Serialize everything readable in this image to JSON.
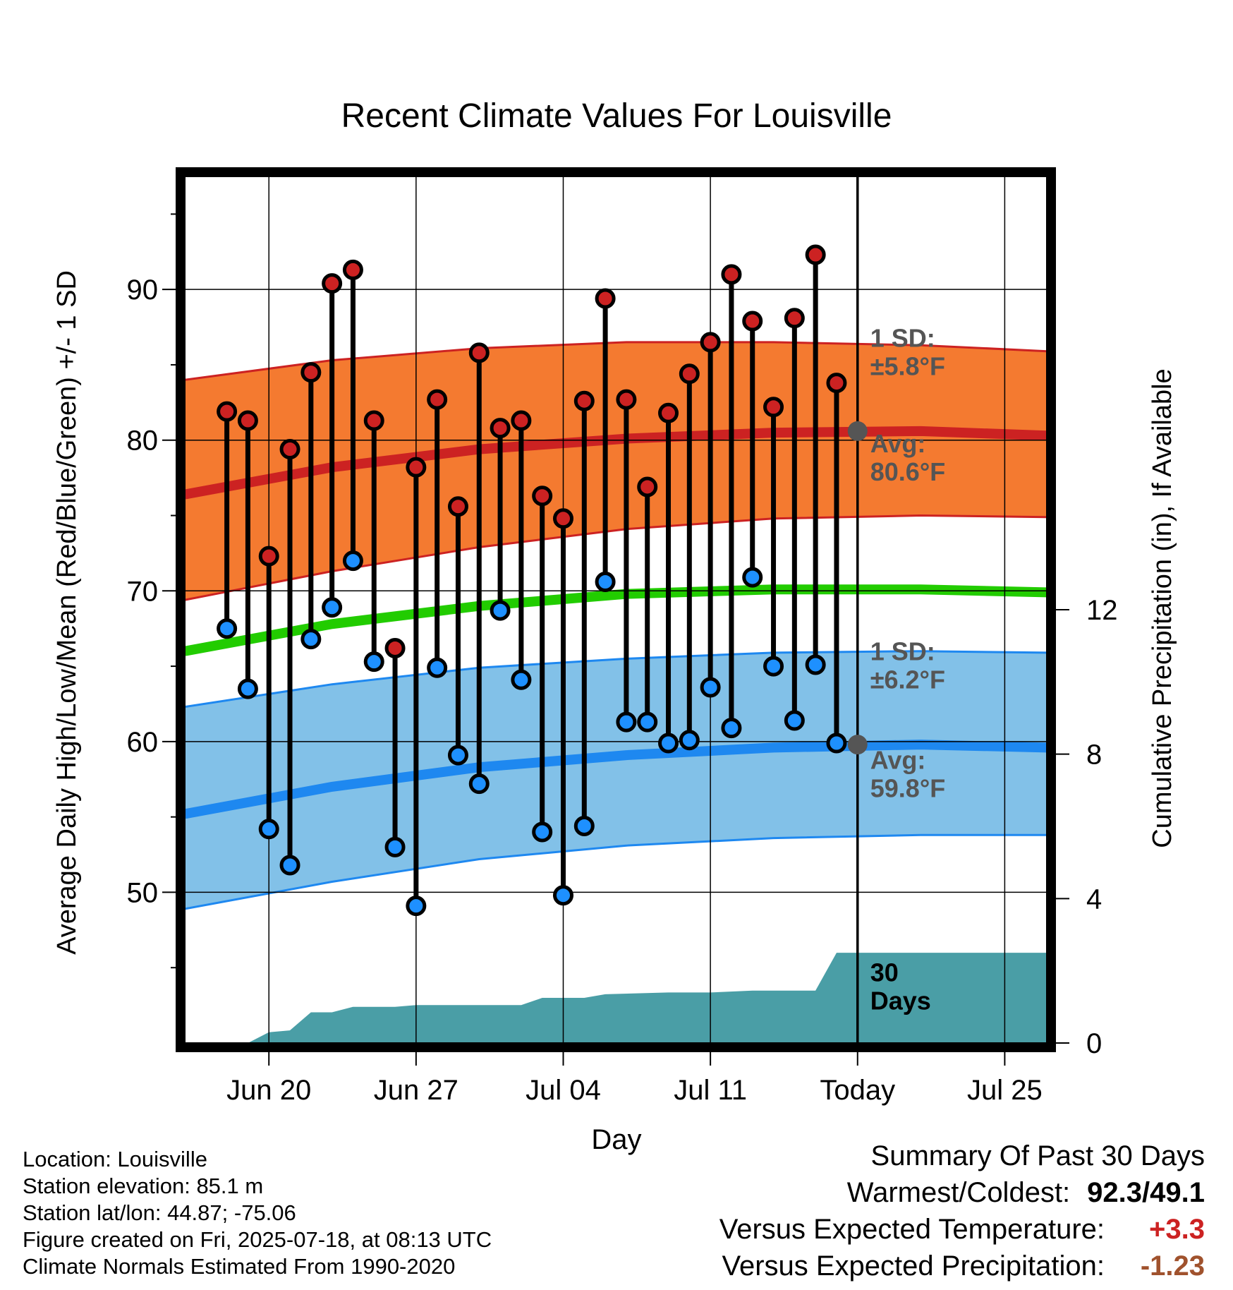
{
  "title": "Recent Climate Values For Louisville",
  "colors": {
    "high_band": "#f47a30",
    "high_edge": "#cc2222",
    "low_band": "#82c1e8",
    "low_edge": "#1e88f0",
    "mean_line": "#22cc00",
    "precip": "#4a9ea6",
    "high_dot": "#cc2222",
    "low_dot": "#1e90ff",
    "annot": "#555555",
    "positive": "#cc2222",
    "precip_diff": "#a0522d"
  },
  "chart_data": {
    "type": "line",
    "title": "Recent Climate Values For Louisville",
    "xlabel": "Day",
    "ylabel": "Average Daily High/Low/Mean (Red/Blue/Green) +/- 1 SD",
    "y2label": "Cumulative Precipitation (in), If Available",
    "ylim": [
      40,
      97.5
    ],
    "y2lim": [
      0,
      24
    ],
    "xlim": [
      "2025-06-16",
      "2025-07-27"
    ],
    "yticks": [
      50,
      60,
      70,
      80,
      90
    ],
    "y2ticks": [
      0,
      4,
      8,
      12
    ],
    "xtick_dates": [
      "2025-06-20",
      "2025-06-27",
      "2025-07-04",
      "2025-07-11",
      "2025-07-18",
      "2025-07-25"
    ],
    "xtick_labels": [
      "Jun 20",
      "Jun 27",
      "Jul 04",
      "Jul 11",
      "Today",
      "Jul 25"
    ],
    "today": "2025-07-18",
    "grid": true,
    "normals": {
      "dates": [
        "2025-06-16",
        "2025-06-23",
        "2025-06-30",
        "2025-07-07",
        "2025-07-14",
        "2025-07-21",
        "2025-07-27"
      ],
      "high_avg": [
        76.4,
        78.2,
        79.4,
        80.1,
        80.5,
        80.6,
        80.3
      ],
      "high_upper": [
        84.0,
        85.3,
        86.1,
        86.5,
        86.5,
        86.3,
        85.9
      ],
      "high_lower": [
        69.4,
        71.3,
        72.9,
        74.1,
        74.8,
        75.0,
        74.9
      ],
      "mean_avg": [
        66.0,
        67.8,
        69.0,
        69.8,
        70.1,
        70.1,
        69.9
      ],
      "low_avg": [
        55.2,
        57.0,
        58.3,
        59.1,
        59.6,
        59.8,
        59.6
      ],
      "low_upper": [
        62.3,
        63.8,
        64.9,
        65.5,
        65.9,
        66.0,
        65.9
      ],
      "low_lower": [
        48.9,
        50.7,
        52.2,
        53.1,
        53.6,
        53.8,
        53.8
      ]
    },
    "daily_dates": [
      "2025-06-18",
      "2025-06-19",
      "2025-06-20",
      "2025-06-21",
      "2025-06-22",
      "2025-06-23",
      "2025-06-24",
      "2025-06-25",
      "2025-06-26",
      "2025-06-27",
      "2025-06-28",
      "2025-06-29",
      "2025-06-30",
      "2025-07-01",
      "2025-07-02",
      "2025-07-03",
      "2025-07-04",
      "2025-07-05",
      "2025-07-06",
      "2025-07-07",
      "2025-07-08",
      "2025-07-09",
      "2025-07-10",
      "2025-07-11",
      "2025-07-12",
      "2025-07-13",
      "2025-07-14",
      "2025-07-15",
      "2025-07-16",
      "2025-07-17"
    ],
    "daily_high": [
      81.9,
      81.3,
      72.3,
      79.4,
      84.5,
      90.4,
      91.3,
      81.3,
      66.2,
      78.2,
      82.7,
      75.6,
      85.8,
      80.8,
      81.3,
      76.3,
      74.8,
      82.6,
      89.4,
      82.7,
      76.9,
      81.8,
      84.4,
      86.5,
      91.0,
      87.9,
      82.2,
      88.1,
      92.3,
      83.8
    ],
    "daily_low": [
      67.5,
      63.5,
      54.2,
      51.8,
      66.8,
      68.9,
      72.0,
      65.3,
      53.0,
      49.1,
      64.9,
      59.1,
      57.2,
      68.7,
      64.1,
      54.0,
      49.8,
      54.4,
      70.6,
      61.3,
      61.3,
      59.9,
      60.1,
      63.6,
      60.9,
      70.9,
      65.0,
      61.4,
      65.1,
      59.9
    ],
    "precip": {
      "dates": [
        "2025-06-16",
        "2025-06-19",
        "2025-06-20",
        "2025-06-21",
        "2025-06-22",
        "2025-06-23",
        "2025-06-24",
        "2025-06-25",
        "2025-06-26",
        "2025-06-27",
        "2025-06-28",
        "2025-07-02",
        "2025-07-03",
        "2025-07-05",
        "2025-07-06",
        "2025-07-09",
        "2025-07-11",
        "2025-07-13",
        "2025-07-15",
        "2025-07-16",
        "2025-07-17",
        "2025-07-27"
      ],
      "values": [
        0,
        0,
        0.3,
        0.35,
        0.85,
        0.85,
        1.0,
        1.0,
        1.0,
        1.05,
        1.05,
        1.05,
        1.25,
        1.25,
        1.35,
        1.4,
        1.4,
        1.45,
        1.45,
        1.45,
        2.5,
        2.5
      ]
    },
    "annotations": [
      {
        "lines": [
          "1 SD:",
          "±5.8°F"
        ]
      },
      {
        "lines": [
          "Avg:",
          "80.6°F"
        ]
      },
      {
        "lines": [
          "1 SD:",
          "±6.2°F"
        ]
      },
      {
        "lines": [
          "Avg:",
          "59.8°F"
        ]
      },
      {
        "lines": [
          "30",
          "Days"
        ]
      }
    ]
  },
  "info": {
    "location": "Location: Louisville",
    "elevation": "Station elevation: 85.1 m",
    "latlon": "Station lat/lon: 44.87; -75.06",
    "created": "Figure created on Fri, 2025-07-18, at 08:13 UTC",
    "normals": "Climate Normals Estimated From 1990-2020"
  },
  "summary": {
    "heading": "Summary Of Past 30 Days",
    "warm_label": "Warmest/Coldest:",
    "warm_value": "92.3/49.1",
    "temp_label": "Versus Expected Temperature:",
    "temp_value": "+3.3",
    "precip_label": "Versus Expected Precipitation:",
    "precip_value": "-1.23"
  }
}
